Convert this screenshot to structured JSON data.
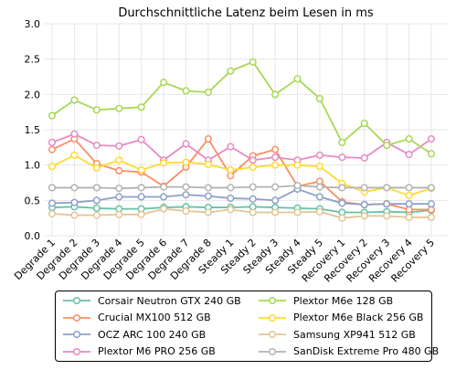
{
  "chart_data": {
    "type": "line",
    "title": "Durchschnittliche Latenz beim Lesen in ms",
    "xlabel": "",
    "ylabel": "",
    "ylim": [
      0.0,
      3.0
    ],
    "yticks": [
      "0.0",
      "0.5",
      "1.0",
      "1.5",
      "2.0",
      "2.5",
      "3.0"
    ],
    "grid": true,
    "legend_position": "bottom",
    "categories": [
      "Degrade 1",
      "Degrade 2",
      "Degrade 3",
      "Degrade 4",
      "Degrade 5",
      "Degrade 6",
      "Degrade 7",
      "Degrade 8",
      "Steady 1",
      "Steady 2",
      "Steady 3",
      "Steady 4",
      "Steady 5",
      "Recovery 1",
      "Recovery 2",
      "Recovery 3",
      "Recovery 4",
      "Recovery 5"
    ],
    "series": [
      {
        "name": "Corsair Neutron GTX 240 GB",
        "color": "#66c2a5",
        "values": [
          0.4,
          0.41,
          0.39,
          0.38,
          0.38,
          0.4,
          0.41,
          0.4,
          0.4,
          0.41,
          0.4,
          0.39,
          0.38,
          0.33,
          0.33,
          0.34,
          0.33,
          0.36
        ]
      },
      {
        "name": "Crucial MX100 512 GB",
        "color": "#fc8d62",
        "values": [
          1.22,
          1.37,
          1.02,
          0.92,
          0.9,
          0.7,
          0.97,
          1.37,
          0.85,
          1.13,
          1.22,
          0.7,
          0.77,
          0.48,
          0.44,
          0.45,
          0.37,
          0.37
        ]
      },
      {
        "name": "OCZ ARC 100 240 GB",
        "color": "#8da0cb",
        "values": [
          0.46,
          0.47,
          0.5,
          0.55,
          0.55,
          0.55,
          0.58,
          0.56,
          0.53,
          0.52,
          0.5,
          0.66,
          0.55,
          0.46,
          0.44,
          0.45,
          0.45,
          0.45
        ]
      },
      {
        "name": "Plextor M6 PRO 256 GB",
        "color": "#e78ac3",
        "values": [
          1.32,
          1.44,
          1.28,
          1.27,
          1.36,
          1.07,
          1.3,
          1.07,
          1.26,
          1.07,
          1.11,
          1.07,
          1.14,
          1.11,
          1.1,
          1.32,
          1.15,
          1.37
        ]
      },
      {
        "name": "Plextor M6e 128 GB",
        "color": "#a6d854",
        "values": [
          1.7,
          1.92,
          1.78,
          1.8,
          1.82,
          2.17,
          2.05,
          2.03,
          2.33,
          2.46,
          2.0,
          2.22,
          1.94,
          1.32,
          1.59,
          1.28,
          1.37,
          1.16
        ]
      },
      {
        "name": "Plextor M6e Black 256 GB",
        "color": "#ffd92f",
        "values": [
          0.98,
          1.14,
          0.96,
          1.07,
          0.93,
          1.03,
          1.04,
          1.01,
          0.93,
          0.97,
          1.0,
          1.0,
          0.98,
          0.74,
          0.62,
          0.68,
          0.57,
          0.67
        ]
      },
      {
        "name": "Samsung XP941 512 GB",
        "color": "#e5c494",
        "values": [
          0.31,
          0.29,
          0.29,
          0.3,
          0.3,
          0.38,
          0.35,
          0.33,
          0.37,
          0.33,
          0.33,
          0.33,
          0.34,
          0.25,
          0.28,
          0.28,
          0.26,
          0.26
        ]
      },
      {
        "name": "SanDisk Extreme Pro 480 GB",
        "color": "#b3b3b3",
        "values": [
          0.68,
          0.68,
          0.68,
          0.67,
          0.68,
          0.69,
          0.69,
          0.68,
          0.68,
          0.69,
          0.69,
          0.71,
          0.69,
          0.68,
          0.68,
          0.68,
          0.68,
          0.68
        ]
      }
    ]
  }
}
